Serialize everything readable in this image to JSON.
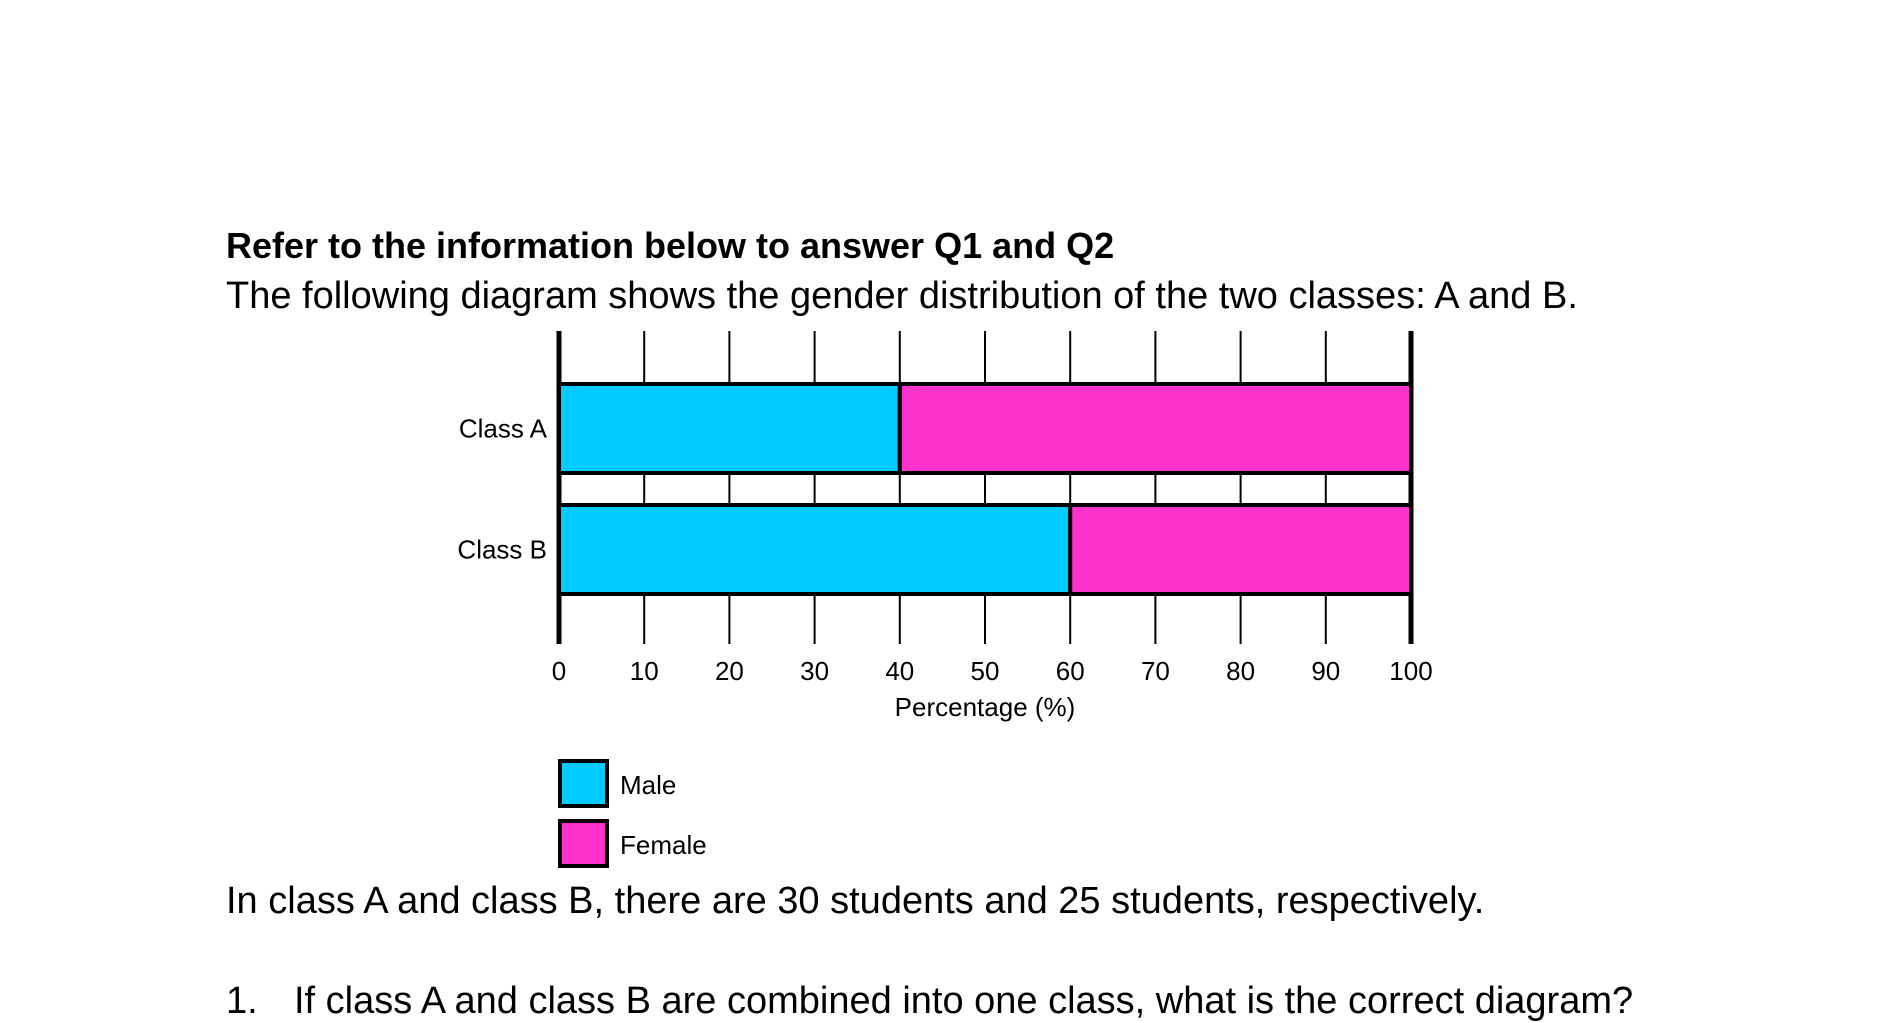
{
  "document": {
    "heading": "Refer to the information below to answer Q1 and Q2",
    "intro": "The following diagram shows the gender distribution of the two classes: A and B.",
    "info": "In class A and class B, there are 30 students and 25 students, respectively.",
    "question_number": "1.",
    "question_text": "If class A and class B are combined into one class, what is the correct diagram?"
  },
  "chart_data": {
    "type": "bar",
    "orientation": "horizontal",
    "stacked": true,
    "categories": [
      "Class A",
      "Class B"
    ],
    "series": [
      {
        "name": "Male",
        "values": [
          40,
          60
        ],
        "color": "#00ccff"
      },
      {
        "name": "Female",
        "values": [
          60,
          40
        ],
        "color": "#ff33cc"
      }
    ],
    "xlabel": "Percentage (%)",
    "xlim": [
      0,
      100
    ],
    "xticks": [
      0,
      10,
      20,
      30,
      40,
      50,
      60,
      70,
      80,
      90,
      100
    ],
    "grid": true,
    "legend": "bottom-left"
  }
}
